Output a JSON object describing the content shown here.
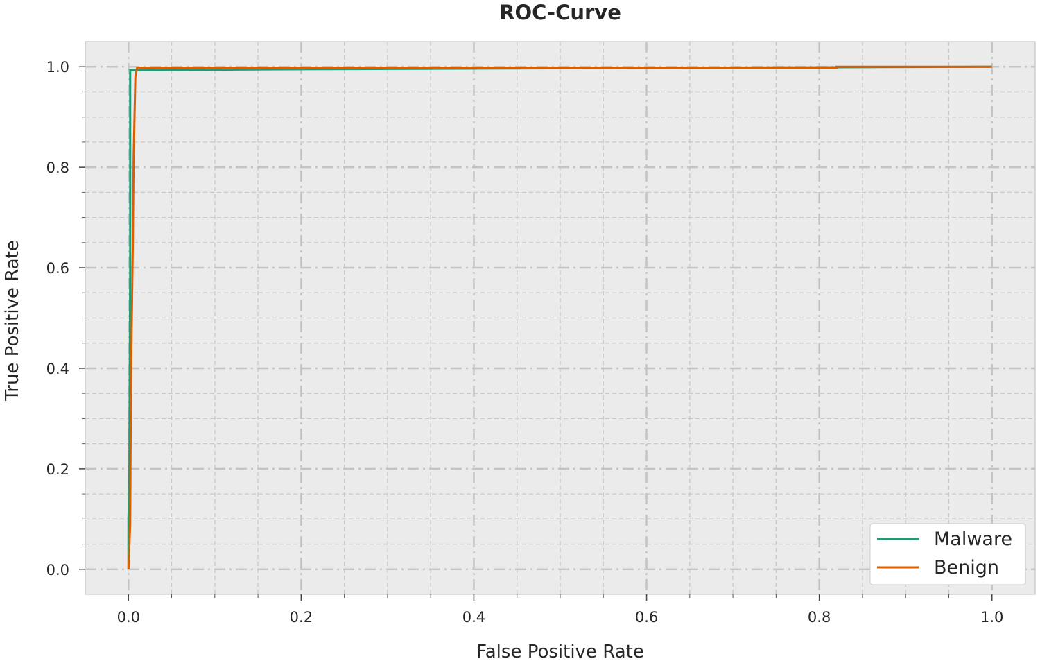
{
  "chart_data": {
    "type": "line",
    "title": "ROC-Curve",
    "x_label": "False Positive Rate",
    "y_label": "True Positive Rate",
    "xlim": [
      -0.05,
      1.05
    ],
    "ylim": [
      -0.05,
      1.05
    ],
    "xticks": [
      {
        "value": 0,
        "label": "0.0"
      },
      0.2,
      0.4,
      0.6,
      0.8,
      {
        "value": 1,
        "label": "1.0"
      }
    ],
    "yticks": [
      {
        "value": 0,
        "label": "0.0"
      },
      0.2,
      0.4,
      0.6,
      0.8,
      {
        "value": 1,
        "label": "1.0"
      }
    ],
    "xminorticks": [
      0.05,
      0.1,
      0.15,
      0.25,
      0.3,
      0.35,
      0.45,
      0.5,
      0.55,
      0.65,
      0.7,
      0.75,
      0.85,
      0.9,
      0.95
    ],
    "yminorticks": [
      0.05,
      0.1,
      0.15,
      0.25,
      0.3,
      0.35,
      0.45,
      0.5,
      0.55,
      0.65,
      0.7,
      0.75,
      0.85,
      0.9,
      0.95
    ],
    "grid": true,
    "legend": "lower right",
    "series": [
      {
        "name": "Malware",
        "color": "#1b9e77",
        "x": [
          0,
          0,
          0.001,
          0.002,
          0.002,
          0.008,
          0.2,
          0.82,
          1
        ],
        "values": [
          0,
          0.1,
          0.2,
          0.6,
          0.993,
          0.993,
          0.995,
          0.999,
          1
        ]
      },
      {
        "name": "Benign",
        "color": "#d95f02",
        "x": [
          0,
          0.002,
          0.003,
          0.005,
          0.006,
          0.008,
          0.01,
          0.82,
          0.82,
          1
        ],
        "values": [
          0,
          0.09,
          0.39,
          0.64,
          0.82,
          0.98,
          0.998,
          0.998,
          1,
          1
        ]
      }
    ]
  }
}
